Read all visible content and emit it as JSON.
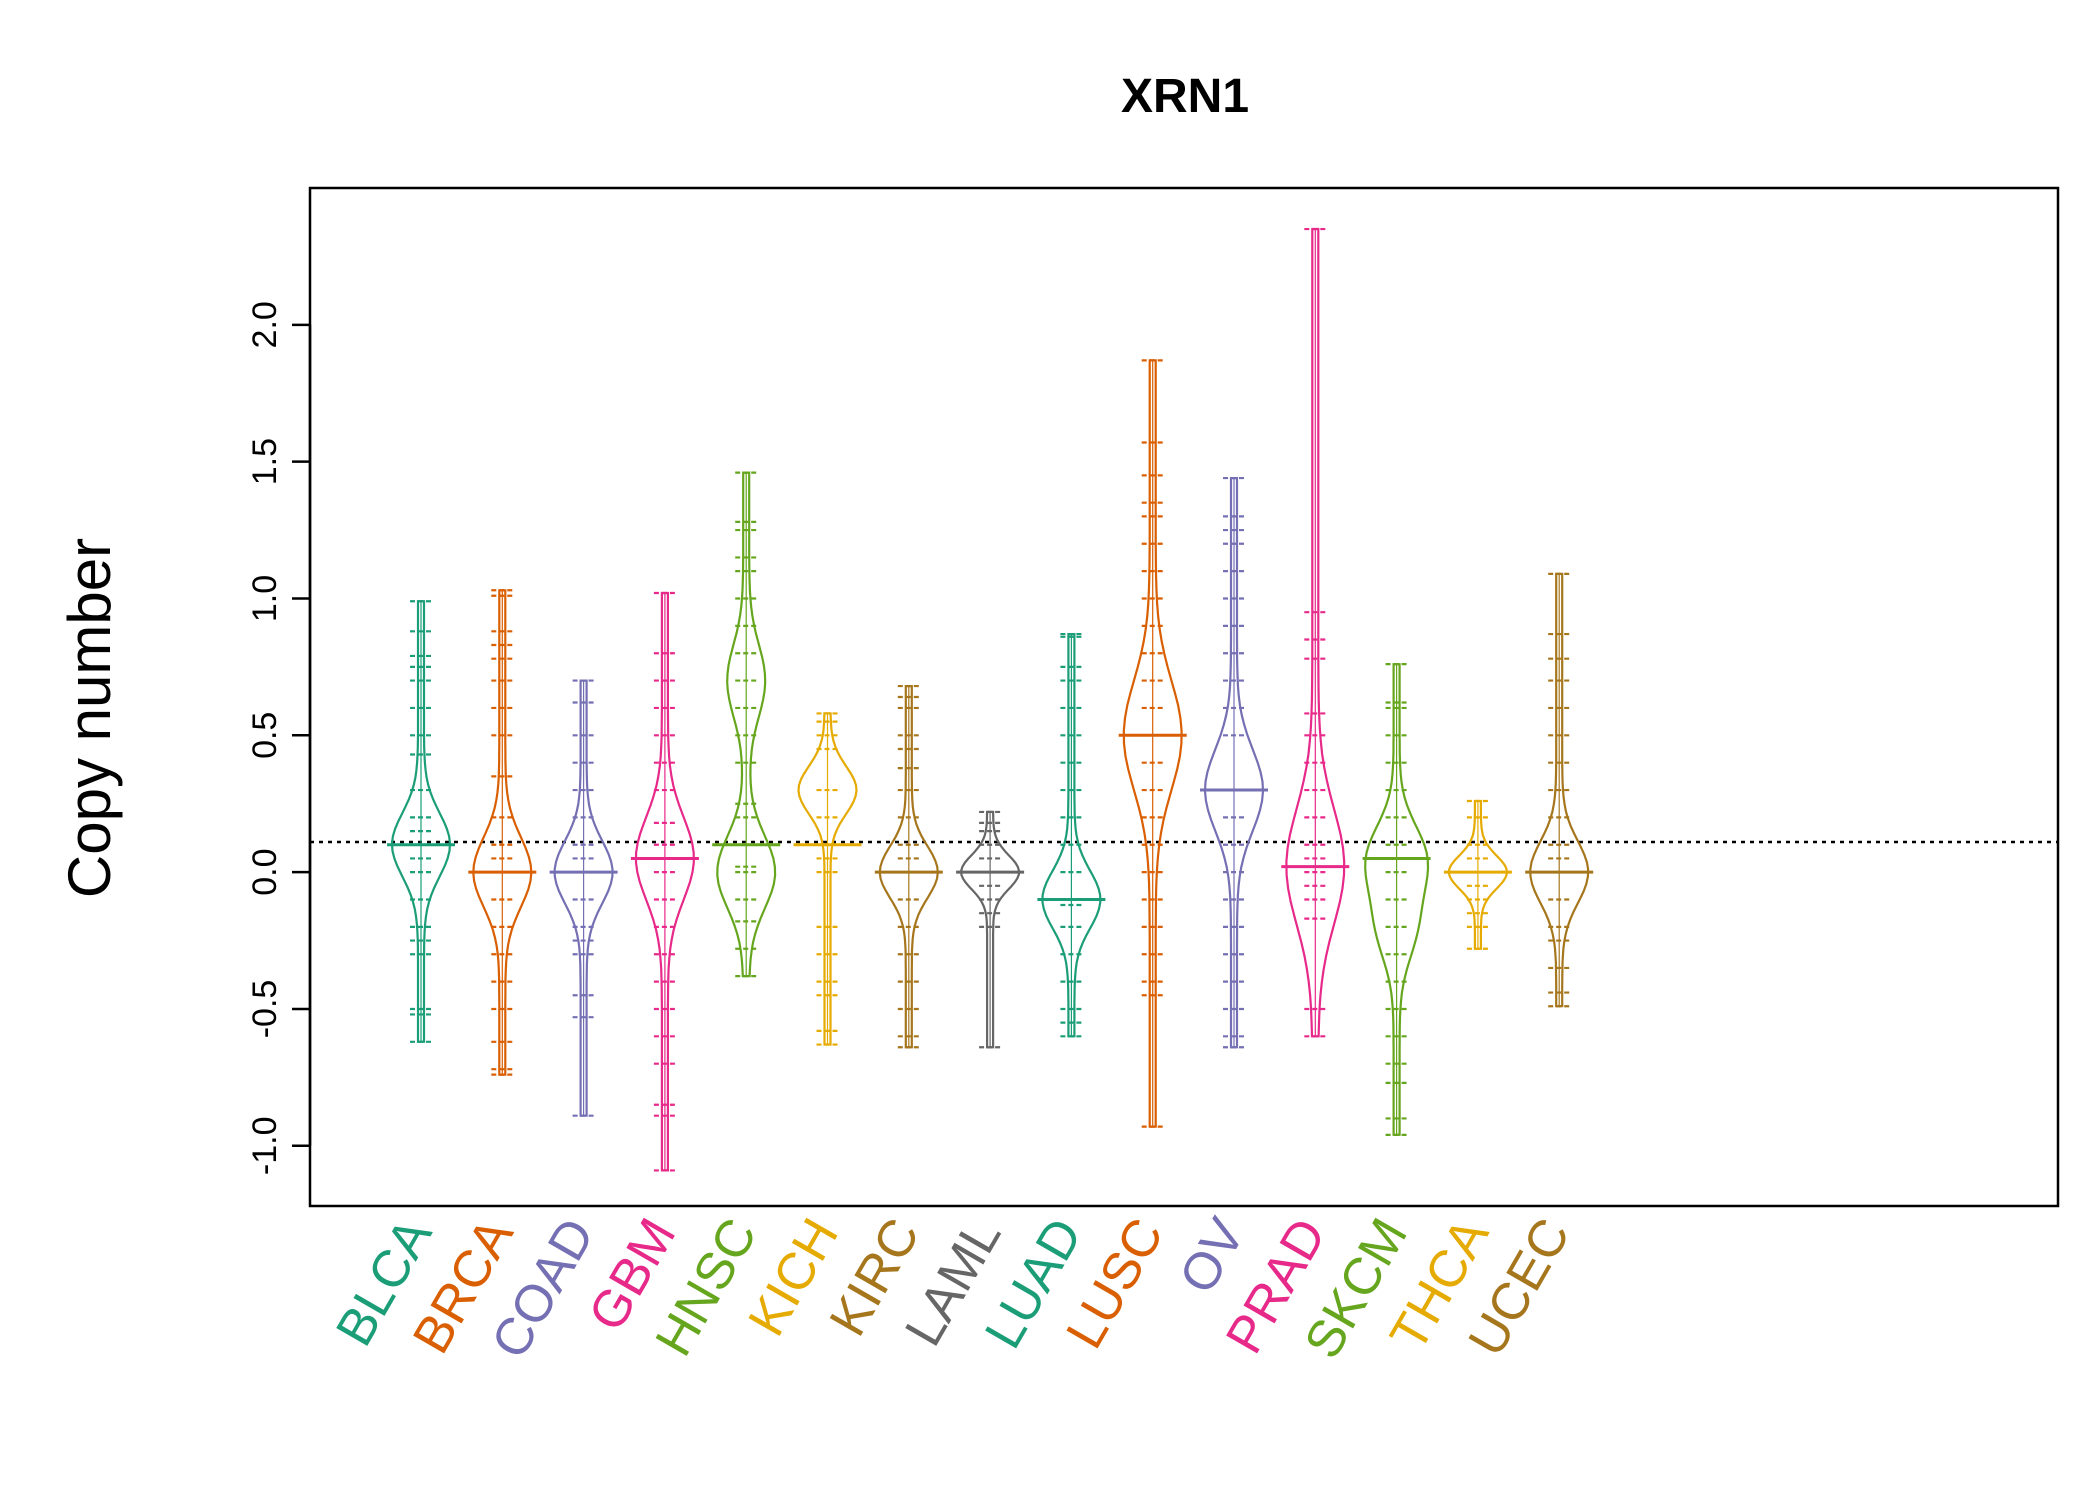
{
  "chart_data": {
    "type": "beanplot",
    "title": "XRN1",
    "ylabel": "Copy number",
    "xlabel": "",
    "ylim": [
      -1.22,
      2.5
    ],
    "yticks": [
      -1.0,
      -0.5,
      0.0,
      0.5,
      1.0,
      1.5,
      2.0
    ],
    "ytick_labels": [
      "-1.0",
      "-0.5",
      "0.0",
      "0.5",
      "1.0",
      "1.5",
      "2.0"
    ],
    "overall_reference_line": 0.11,
    "grid": false,
    "legend": "none",
    "categories": [
      "BLCA",
      "BRCA",
      "COAD",
      "GBM",
      "HNSC",
      "KICH",
      "KIRC",
      "LAML",
      "LUAD",
      "LUSC",
      "OV",
      "PRAD",
      "SKCM",
      "THCA",
      "UCEC"
    ],
    "colors": [
      "#1b9e77",
      "#d95f02",
      "#7570b3",
      "#e7298a",
      "#66a61e",
      "#e6ab02",
      "#a6761d",
      "#666666",
      "#1b9e77",
      "#d95f02",
      "#7570b3",
      "#e7298a",
      "#66a61e",
      "#e6ab02",
      "#a6761d"
    ],
    "series": [
      {
        "category": "BLCA",
        "min": -0.62,
        "max": 0.99,
        "median": 0.1,
        "density_peaks": [
          0.1
        ],
        "points": [
          -0.62,
          -0.52,
          -0.5,
          -0.3,
          -0.25,
          -0.2,
          -0.1,
          0.0,
          0.05,
          0.1,
          0.15,
          0.2,
          0.3,
          0.43,
          0.5,
          0.6,
          0.7,
          0.75,
          0.79,
          0.88,
          0.99
        ]
      },
      {
        "category": "BRCA",
        "min": -0.74,
        "max": 1.03,
        "median": 0.0,
        "density_peaks": [
          0.0
        ],
        "points": [
          -0.74,
          -0.72,
          -0.62,
          -0.5,
          -0.4,
          -0.3,
          -0.2,
          -0.1,
          0.0,
          0.05,
          0.1,
          0.2,
          0.35,
          0.5,
          0.6,
          0.7,
          0.78,
          0.83,
          0.88,
          1.01,
          1.03
        ]
      },
      {
        "category": "COAD",
        "min": -0.89,
        "max": 0.7,
        "median": 0.0,
        "density_peaks": [
          0.0
        ],
        "points": [
          -0.89,
          -0.53,
          -0.45,
          -0.3,
          -0.25,
          -0.2,
          -0.1,
          0.0,
          0.05,
          0.1,
          0.2,
          0.3,
          0.4,
          0.5,
          0.62,
          0.7
        ]
      },
      {
        "category": "GBM",
        "min": -1.09,
        "max": 1.02,
        "median": 0.05,
        "density_peaks": [
          0.05
        ],
        "points": [
          -1.09,
          -0.89,
          -0.85,
          -0.7,
          -0.6,
          -0.5,
          -0.4,
          -0.3,
          -0.2,
          -0.1,
          0.0,
          0.05,
          0.1,
          0.18,
          0.3,
          0.4,
          0.5,
          0.6,
          0.7,
          0.8,
          1.02
        ]
      },
      {
        "category": "HNSC",
        "min": -0.38,
        "max": 1.46,
        "median": 0.1,
        "density_peaks": [
          0.0,
          0.7
        ],
        "points": [
          -0.38,
          -0.28,
          -0.18,
          -0.1,
          0.0,
          0.02,
          0.1,
          0.2,
          0.25,
          0.4,
          0.5,
          0.6,
          0.7,
          0.8,
          0.9,
          1.0,
          1.1,
          1.15,
          1.25,
          1.28,
          1.46
        ]
      },
      {
        "category": "KICH",
        "min": -0.63,
        "max": 0.58,
        "median": 0.1,
        "density_peaks": [
          0.3
        ],
        "points": [
          -0.63,
          -0.58,
          -0.45,
          -0.4,
          -0.3,
          -0.2,
          0.0,
          0.05,
          0.1,
          0.2,
          0.3,
          0.45,
          0.5,
          0.55,
          0.58
        ]
      },
      {
        "category": "KIRC",
        "min": -0.64,
        "max": 0.68,
        "median": 0.0,
        "density_peaks": [
          0.0
        ],
        "points": [
          -0.64,
          -0.6,
          -0.5,
          -0.4,
          -0.3,
          -0.2,
          -0.1,
          0.0,
          0.05,
          0.1,
          0.2,
          0.3,
          0.38,
          0.45,
          0.5,
          0.6,
          0.64,
          0.68
        ]
      },
      {
        "category": "LAML",
        "min": -0.64,
        "max": 0.22,
        "median": 0.0,
        "density_peaks": [
          0.0
        ],
        "points": [
          -0.64,
          -0.2,
          -0.15,
          -0.1,
          -0.05,
          0.0,
          0.05,
          0.1,
          0.15,
          0.18,
          0.22
        ]
      },
      {
        "category": "LUAD",
        "min": -0.6,
        "max": 0.87,
        "median": -0.1,
        "density_peaks": [
          -0.1
        ],
        "points": [
          -0.6,
          -0.55,
          -0.5,
          -0.4,
          -0.3,
          -0.2,
          -0.12,
          0.0,
          0.1,
          0.2,
          0.3,
          0.4,
          0.5,
          0.6,
          0.7,
          0.75,
          0.86,
          0.87
        ]
      },
      {
        "category": "LUSC",
        "min": -0.93,
        "max": 1.87,
        "median": 0.5,
        "density_peaks": [
          0.5
        ],
        "points": [
          -0.93,
          -0.45,
          -0.4,
          -0.3,
          -0.2,
          -0.1,
          0.0,
          0.1,
          0.2,
          0.3,
          0.4,
          0.5,
          0.6,
          0.7,
          0.8,
          0.9,
          1.0,
          1.1,
          1.2,
          1.3,
          1.35,
          1.45,
          1.57,
          1.87
        ]
      },
      {
        "category": "OV",
        "min": -0.64,
        "max": 1.44,
        "median": 0.3,
        "density_peaks": [
          0.3
        ],
        "points": [
          -0.64,
          -0.6,
          -0.5,
          -0.4,
          -0.3,
          -0.2,
          -0.1,
          0.0,
          0.1,
          0.2,
          0.3,
          0.5,
          0.6,
          0.7,
          0.8,
          0.9,
          1.0,
          1.1,
          1.2,
          1.25,
          1.3,
          1.44
        ]
      },
      {
        "category": "PRAD",
        "min": -0.6,
        "max": 2.35,
        "median": 0.02,
        "density_peaks": [
          0.02
        ],
        "points": [
          -0.6,
          -0.5,
          -0.17,
          -0.1,
          -0.05,
          0.0,
          0.02,
          0.05,
          0.1,
          0.2,
          0.3,
          0.4,
          0.5,
          0.58,
          0.78,
          0.85,
          0.95,
          2.35
        ]
      },
      {
        "category": "SKCM",
        "min": -0.96,
        "max": 0.76,
        "median": 0.05,
        "density_peaks": [
          0.05,
          -0.2
        ],
        "points": [
          -0.96,
          -0.9,
          -0.77,
          -0.7,
          -0.6,
          -0.5,
          -0.4,
          -0.3,
          -0.2,
          -0.1,
          0.0,
          0.05,
          0.1,
          0.2,
          0.3,
          0.4,
          0.5,
          0.6,
          0.62,
          0.76
        ]
      },
      {
        "category": "THCA",
        "min": -0.28,
        "max": 0.26,
        "median": 0.0,
        "density_peaks": [
          0.0
        ],
        "points": [
          -0.28,
          -0.2,
          -0.15,
          -0.1,
          -0.05,
          0.0,
          0.05,
          0.1,
          0.2,
          0.26
        ]
      },
      {
        "category": "UCEC",
        "min": -0.49,
        "max": 1.09,
        "median": 0.0,
        "density_peaks": [
          0.0
        ],
        "points": [
          -0.49,
          -0.44,
          -0.35,
          -0.25,
          -0.2,
          -0.1,
          0.0,
          0.05,
          0.1,
          0.2,
          0.3,
          0.4,
          0.5,
          0.6,
          0.7,
          0.78,
          0.87,
          1.09
        ]
      }
    ]
  }
}
